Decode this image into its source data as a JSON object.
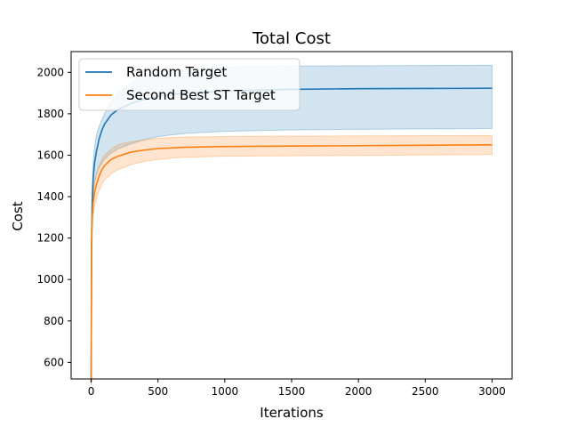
{
  "chart_data": {
    "type": "line",
    "title": "Total Cost",
    "xlabel": "Iterations",
    "ylabel": "Cost",
    "xlim": [
      -150,
      3150
    ],
    "ylim": [
      520,
      2100
    ],
    "xticks": [
      0,
      500,
      1000,
      1500,
      2000,
      2500,
      3000
    ],
    "yticks": [
      600,
      800,
      1000,
      1200,
      1400,
      1600,
      1800,
      2000
    ],
    "grid": false,
    "legend_position": "top-left",
    "series": [
      {
        "name": "Random Target",
        "color": "#1f77b4",
        "band_color": "#1f77b4",
        "x": [
          0,
          3,
          8,
          15,
          25,
          40,
          60,
          80,
          100,
          150,
          200,
          300,
          400,
          500,
          700,
          1000,
          1500,
          2000,
          2500,
          3000
        ],
        "mean": [
          510,
          1180,
          1380,
          1490,
          1560,
          1620,
          1680,
          1720,
          1750,
          1795,
          1820,
          1850,
          1870,
          1885,
          1900,
          1910,
          1918,
          1921,
          1922,
          1923
        ],
        "lower": [
          495,
          1150,
          1330,
          1420,
          1470,
          1510,
          1540,
          1560,
          1580,
          1610,
          1630,
          1655,
          1675,
          1690,
          1705,
          1715,
          1722,
          1725,
          1727,
          1728
        ],
        "upper": [
          525,
          1220,
          1440,
          1560,
          1640,
          1700,
          1740,
          1770,
          1800,
          1860,
          1900,
          1950,
          1980,
          2000,
          2015,
          2025,
          2030,
          2032,
          2033,
          2034
        ]
      },
      {
        "name": "Second Best ST Target",
        "color": "#ff7f0e",
        "band_color": "#ff7f0e",
        "x": [
          0,
          3,
          8,
          15,
          25,
          40,
          60,
          80,
          100,
          150,
          200,
          300,
          400,
          500,
          700,
          1000,
          1500,
          2000,
          2500,
          3000
        ],
        "mean": [
          505,
          1150,
          1300,
          1370,
          1420,
          1460,
          1500,
          1530,
          1550,
          1580,
          1595,
          1615,
          1625,
          1632,
          1638,
          1642,
          1644,
          1646,
          1648,
          1650
        ],
        "lower": [
          490,
          1110,
          1250,
          1310,
          1350,
          1390,
          1430,
          1460,
          1480,
          1510,
          1530,
          1555,
          1570,
          1580,
          1590,
          1595,
          1597,
          1599,
          1601,
          1603
        ],
        "upper": [
          520,
          1190,
          1350,
          1420,
          1470,
          1510,
          1550,
          1580,
          1600,
          1630,
          1650,
          1665,
          1675,
          1682,
          1688,
          1690,
          1692,
          1693,
          1694,
          1695
        ]
      }
    ]
  }
}
